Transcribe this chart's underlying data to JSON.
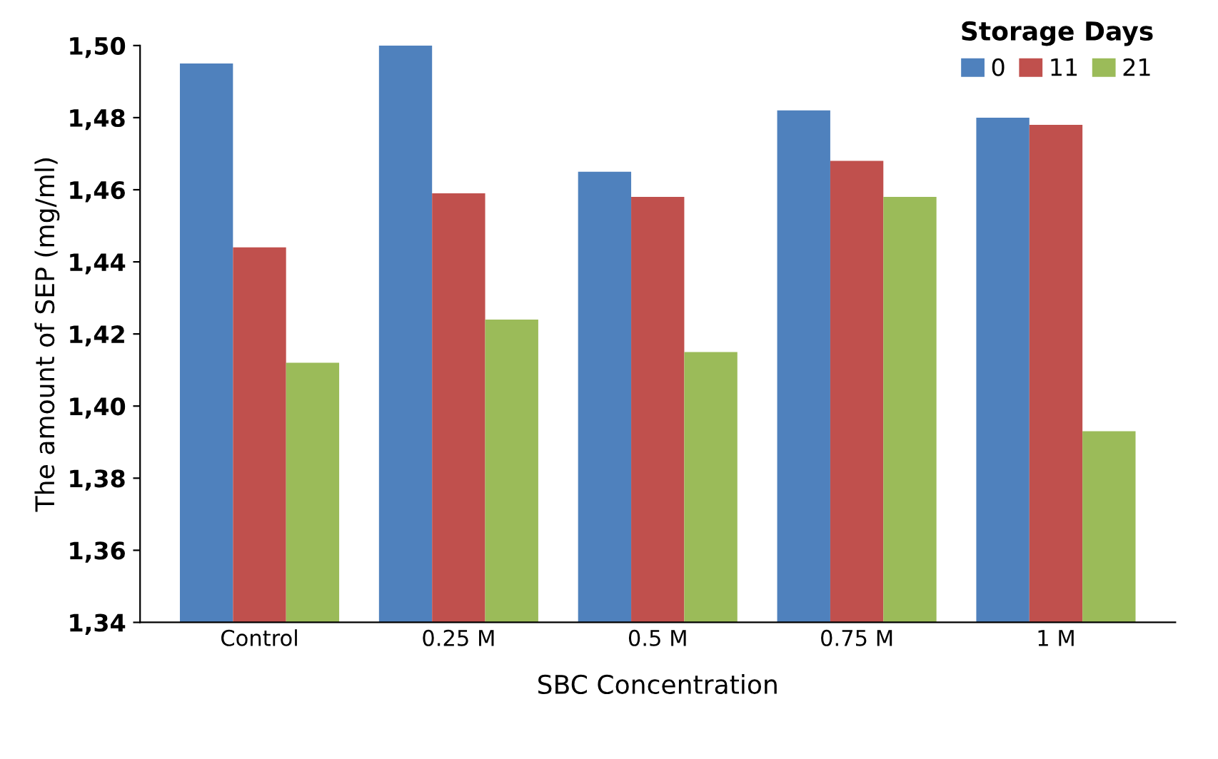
{
  "chart_data": {
    "type": "bar",
    "xlabel": "SBC Concentration",
    "ylabel": "The amount of SEP (mg/ml)",
    "legend_title": "Storage Days",
    "legend": "top right",
    "grid": false,
    "categories": [
      "Control",
      "0.25 M",
      "0.5 M",
      "0.75 M",
      "1 M"
    ],
    "series": [
      {
        "name": "0",
        "color": "#4f81bd",
        "values": [
          1.495,
          1.5,
          1.465,
          1.482,
          1.48
        ]
      },
      {
        "name": "11",
        "color": "#c0504d",
        "values": [
          1.444,
          1.459,
          1.458,
          1.468,
          1.478
        ]
      },
      {
        "name": "21",
        "color": "#9bbb59",
        "values": [
          1.412,
          1.424,
          1.415,
          1.458,
          1.393
        ]
      }
    ],
    "ylim": [
      1.34,
      1.5
    ],
    "yticks": [
      {
        "value": 1.34,
        "label": "1,34"
      },
      {
        "value": 1.36,
        "label": "1,36"
      },
      {
        "value": 1.38,
        "label": "1,38"
      },
      {
        "value": 1.4,
        "label": "1,40"
      },
      {
        "value": 1.42,
        "label": "1,42"
      },
      {
        "value": 1.44,
        "label": "1,44"
      },
      {
        "value": 1.46,
        "label": "1,46"
      },
      {
        "value": 1.48,
        "label": "1,48"
      },
      {
        "value": 1.5,
        "label": "1,50"
      }
    ]
  }
}
